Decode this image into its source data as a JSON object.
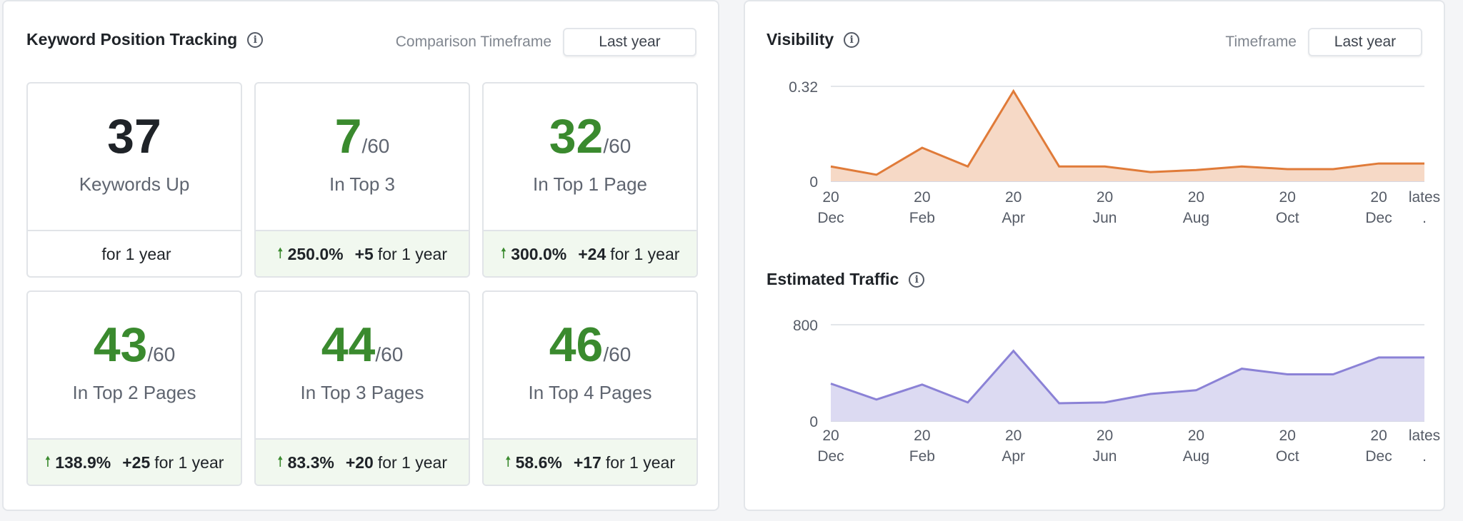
{
  "keyword_tracking": {
    "title": "Keyword Position Tracking",
    "timeframe_label": "Comparison Timeframe",
    "timeframe_value": "Last year",
    "cards": [
      {
        "value": "37",
        "denominator": "",
        "label": "Keywords Up",
        "change_pct": "",
        "change_abs": "",
        "period": "for 1 year",
        "positive": false
      },
      {
        "value": "7",
        "denominator": "/60",
        "label": "In Top 3",
        "change_pct": "250.0%",
        "change_abs": "+5",
        "period": "for 1 year",
        "positive": true
      },
      {
        "value": "32",
        "denominator": "/60",
        "label": "In Top 1 Page",
        "change_pct": "300.0%",
        "change_abs": "+24",
        "period": "for 1 year",
        "positive": true
      },
      {
        "value": "43",
        "denominator": "/60",
        "label": "In Top 2 Pages",
        "change_pct": "138.9%",
        "change_abs": "+25",
        "period": "for 1 year",
        "positive": true
      },
      {
        "value": "44",
        "denominator": "/60",
        "label": "In Top 3 Pages",
        "change_pct": "83.3%",
        "change_abs": "+20",
        "period": "for 1 year",
        "positive": true
      },
      {
        "value": "46",
        "denominator": "/60",
        "label": "In Top 4 Pages",
        "change_pct": "58.6%",
        "change_abs": "+17",
        "period": "for 1 year",
        "positive": true
      }
    ]
  },
  "visibility_panel": {
    "title": "Visibility",
    "timeframe_label": "Timeframe",
    "timeframe_value": "Last year"
  },
  "traffic_panel": {
    "title": "Estimated Traffic"
  },
  "colors": {
    "green": "#3a8a2e",
    "visibility_line": "#e07b39",
    "visibility_fill": "#f6d9c6",
    "traffic_line": "#8b82d6",
    "traffic_fill": "#dcdaf2"
  },
  "chart_data": [
    {
      "type": "area",
      "title": "Visibility",
      "ylim": [
        0,
        0.32
      ],
      "yticks": [
        "0",
        "0.32"
      ],
      "x_labels": [
        [
          "20",
          "Dec"
        ],
        [
          "",
          ""
        ],
        [
          "20",
          "Feb"
        ],
        [
          "",
          ""
        ],
        [
          "20",
          "Apr"
        ],
        [
          "",
          ""
        ],
        [
          "20",
          "Jun"
        ],
        [
          "",
          ""
        ],
        [
          "20",
          "Aug"
        ],
        [
          "",
          ""
        ],
        [
          "20",
          "Oct"
        ],
        [
          "",
          ""
        ],
        [
          "20",
          "Dec"
        ],
        [
          "lates",
          "."
        ]
      ],
      "values": [
        0.05,
        0.022,
        0.113,
        0.05,
        0.304,
        0.05,
        0.05,
        0.031,
        0.038,
        0.05,
        0.041,
        0.041,
        0.06,
        0.06
      ],
      "grid": true
    },
    {
      "type": "area",
      "title": "Estimated Traffic",
      "ylim": [
        0,
        800
      ],
      "yticks": [
        "0",
        "800"
      ],
      "x_labels": [
        [
          "20",
          "Dec"
        ],
        [
          "",
          ""
        ],
        [
          "20",
          "Feb"
        ],
        [
          "",
          ""
        ],
        [
          "20",
          "Apr"
        ],
        [
          "",
          ""
        ],
        [
          "20",
          "Jun"
        ],
        [
          "",
          ""
        ],
        [
          "20",
          "Aug"
        ],
        [
          "",
          ""
        ],
        [
          "20",
          "Oct"
        ],
        [
          "",
          ""
        ],
        [
          "20",
          "Dec"
        ],
        [
          "lates",
          "."
        ]
      ],
      "values": [
        311,
        179,
        303,
        155,
        583,
        148,
        155,
        225,
        256,
        435,
        388,
        388,
        528,
        528
      ],
      "grid": true
    }
  ]
}
